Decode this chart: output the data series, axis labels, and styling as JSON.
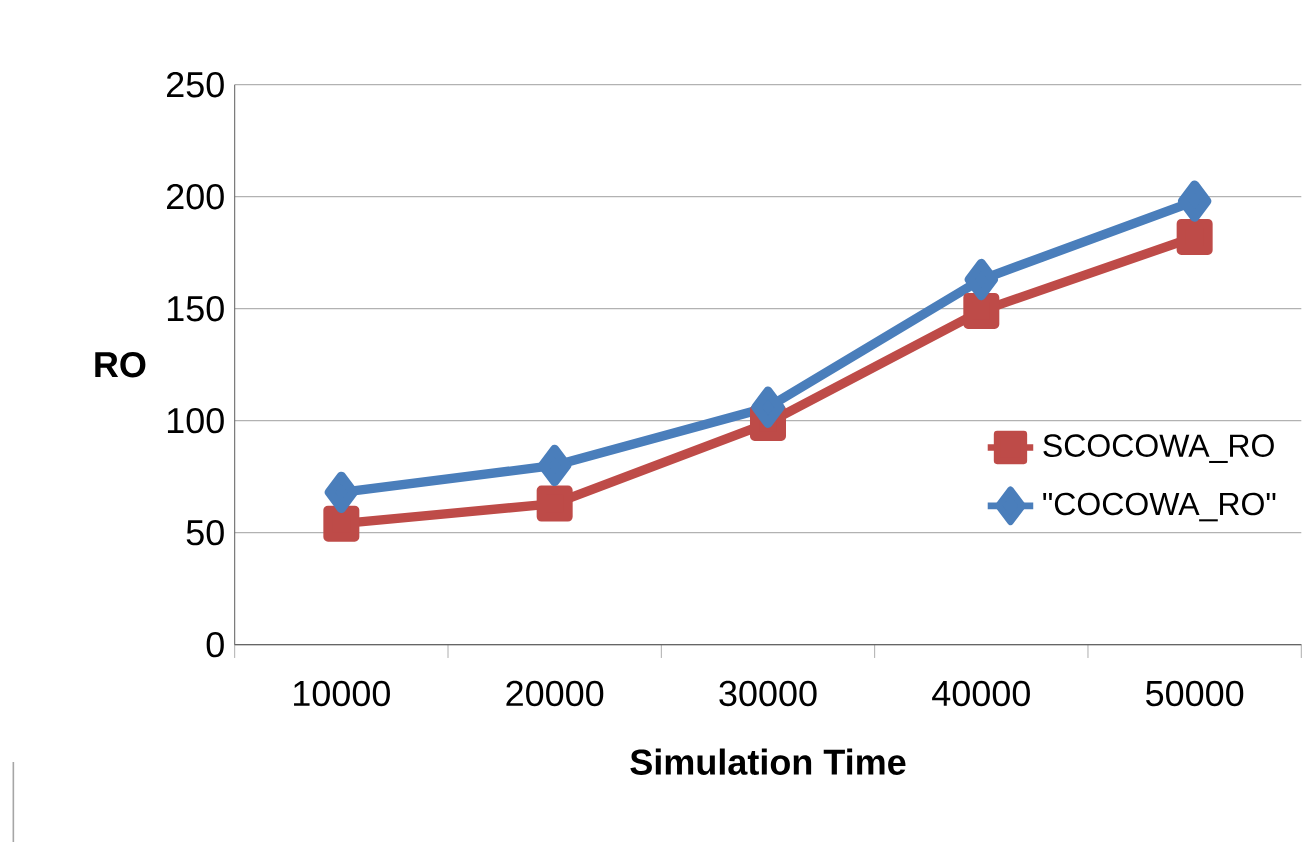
{
  "chart_data": {
    "type": "line",
    "xlabel": "Simulation Time",
    "ylabel": "RO",
    "categories": [
      "10000",
      "20000",
      "30000",
      "40000",
      "50000"
    ],
    "series": [
      {
        "name": "\"COCOWA_RO\"",
        "color": "#4a7ebb",
        "marker": "diamond",
        "values": [
          68,
          80,
          106,
          163,
          198
        ]
      },
      {
        "name": "SCOCOWA_RO",
        "color": "#be4b48",
        "marker": "square",
        "values": [
          54,
          63,
          99,
          149,
          182
        ]
      }
    ],
    "ylim": [
      0,
      250
    ],
    "yticks": [
      0,
      50,
      100,
      150,
      200,
      250
    ],
    "grid": "y",
    "legend": "right"
  }
}
